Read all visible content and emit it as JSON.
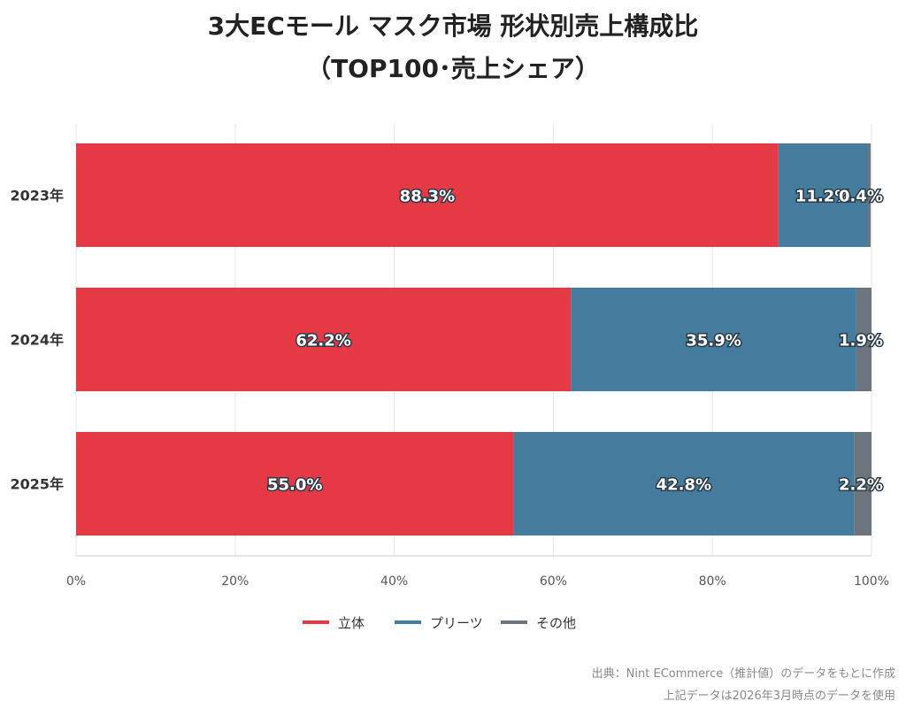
{
  "title_line1": "3大ECモール マスク市場 形状別売上構成比",
  "title_line2": "（TOP100･売上シェア）",
  "chart_data": {
    "type": "bar",
    "orientation": "horizontal",
    "stacked": true,
    "categories": [
      "2023年",
      "2024年",
      "2025年"
    ],
    "series": [
      {
        "name": "立体",
        "color": "#E63946",
        "values": [
          88.3,
          62.2,
          55.0
        ],
        "labels": [
          "88.3%",
          "62.2%",
          "55.0%"
        ]
      },
      {
        "name": "プリーツ",
        "color": "#457B9D",
        "values": [
          11.2,
          35.9,
          42.8
        ],
        "labels": [
          "11.2%",
          "35.9%",
          "42.8%"
        ]
      },
      {
        "name": "その他",
        "color": "#6C757D",
        "values": [
          0.4,
          1.9,
          2.2
        ],
        "labels": [
          "0.4%",
          "1.9%",
          "2.2%"
        ]
      }
    ],
    "xlim": [
      0,
      100
    ],
    "xticks": [
      "0%",
      "20%",
      "40%",
      "60%",
      "80%",
      "100%"
    ],
    "grid": true,
    "legend": "bottom-center"
  },
  "source_line1": "出典：Nint ECommerce（推計値）のデータをもとに作成",
  "source_line2": "上記データは2026年3月時点のデータを使用"
}
